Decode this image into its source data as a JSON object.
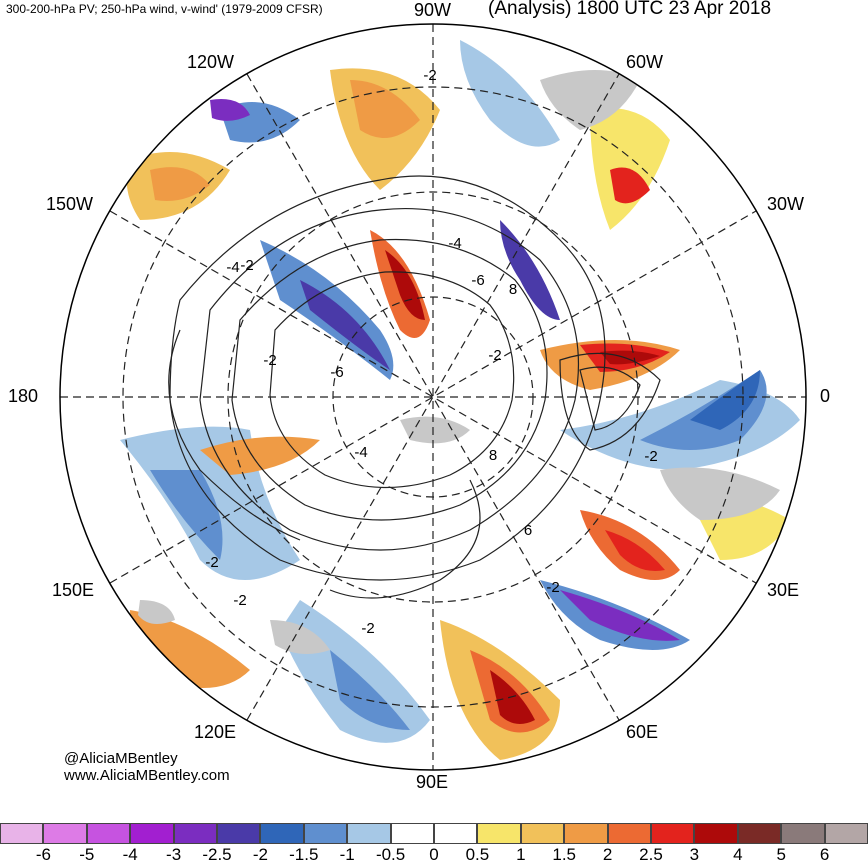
{
  "header": {
    "left": "300-200-hPa PV; 250-hPa wind, v-wind' (1979-2009 CFSR)",
    "right": "(Analysis) 1800 UTC 23 Apr 2018"
  },
  "longitude_labels": {
    "w90": "90W",
    "w60": "60W",
    "w120": "120W",
    "w150": "150W",
    "w30": "30W",
    "zero": "0",
    "e180": "180",
    "e30": "30E",
    "e150": "150E",
    "e60": "60E",
    "e120": "120E",
    "e90": "90E"
  },
  "contour_labels": [
    "-2",
    "-4",
    "-6",
    "8",
    "-2",
    "-4",
    "-2",
    "-6",
    "-4",
    "8",
    "-2",
    "6",
    "-2",
    "-2",
    "-2",
    "-2",
    "-2"
  ],
  "credit": {
    "handle": "@AliciaMBentley",
    "site": "www.AliciaMBentley.com"
  },
  "colorbar": {
    "colors": [
      "#e8b3e8",
      "#dd7be6",
      "#c653e0",
      "#a21fd0",
      "#7b2dc0",
      "#4a3aa8",
      "#2f66b8",
      "#5f8fcf",
      "#a6c8e6",
      "#ffffff",
      "#ffffff",
      "#f7e56a",
      "#f1c15a",
      "#ef9b45",
      "#ec6a33",
      "#e3231d",
      "#ad0a0a",
      "#7a2a26",
      "#8a7a7a",
      "#b3a6a6"
    ],
    "ticks": [
      "-6",
      "-5",
      "-4",
      "-3",
      "-2.5",
      "-2",
      "-1.5",
      "-1",
      "-0.5",
      "0",
      "0.5",
      "1",
      "1.5",
      "2",
      "2.5",
      "3",
      "4",
      "5",
      "6"
    ]
  }
}
